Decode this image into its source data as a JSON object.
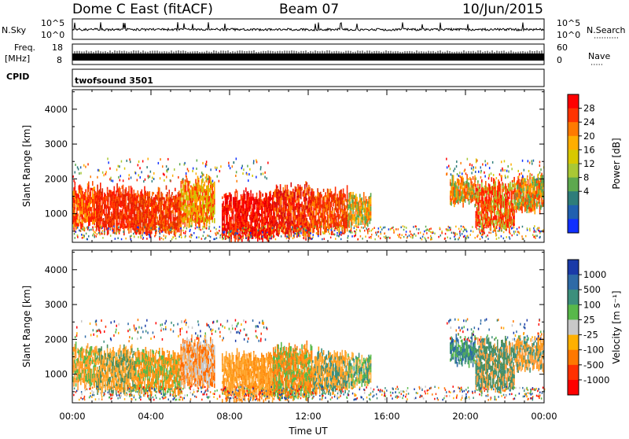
{
  "header": {
    "station": "Dome C East (fitACF)",
    "beam": "Beam 07",
    "date": "10/Jun/2015"
  },
  "params": {
    "nsky_label": "N.Sky",
    "nsky_ticks": [
      "10^5",
      "10^0"
    ],
    "nsearch_label": "N.Search",
    "nsearch_ticks": [
      "10^5",
      "10^0"
    ],
    "freq_label_1": "Freq.",
    "freq_label_2": "[MHz]",
    "freq_ticks": [
      "18",
      "8"
    ],
    "nave_label": "Nave",
    "nave_ticks": [
      "60",
      "0"
    ],
    "cpid_label": "CPID",
    "cpid_value": "twofsound 3501"
  },
  "chart_data": [
    {
      "type": "heatmap",
      "name": "power",
      "ylabel": "Slant Range [km]",
      "xlabel": "",
      "y_ticks": [
        "4000",
        "3000",
        "2000",
        "1000"
      ],
      "ylim": [
        180,
        4560
      ],
      "x_ticks": [
        "00:00",
        "04:00",
        "08:00",
        "12:00",
        "16:00",
        "20:00",
        "00:00"
      ],
      "xlim_hours": [
        0,
        24
      ],
      "colorbar": {
        "label": "Power [dB]",
        "ticks": [
          "28",
          "24",
          "20",
          "16",
          "12",
          "8",
          "4"
        ],
        "colors": [
          "#ff0000",
          "#ff3300",
          "#ff7a00",
          "#ffae00",
          "#d8c800",
          "#a9c835",
          "#5da84e",
          "#2e7d7a",
          "#2060b0",
          "#1030ff"
        ]
      },
      "segments": [
        {
          "t": [
            0.0,
            1.2
          ],
          "r": [
            650,
            1700
          ],
          "colors": [
            "#ff1a00",
            "#ff5000",
            "#ffa000"
          ]
        },
        {
          "t": [
            1.2,
            3.2
          ],
          "r": [
            500,
            1650
          ],
          "colors": [
            "#ff1a00",
            "#ff5000",
            "#e02200"
          ]
        },
        {
          "t": [
            3.2,
            5.5
          ],
          "r": [
            450,
            1550
          ],
          "colors": [
            "#ff1a00",
            "#e03000",
            "#ff6a00"
          ]
        },
        {
          "t": [
            5.5,
            7.2
          ],
          "r": [
            700,
            1900
          ],
          "colors": [
            "#ff3a00",
            "#ffa000",
            "#c8c000"
          ]
        },
        {
          "t": [
            7.6,
            10.2
          ],
          "r": [
            300,
            1500
          ],
          "colors": [
            "#ff0000",
            "#e00000",
            "#ff4000"
          ]
        },
        {
          "t": [
            10.2,
            12.2
          ],
          "r": [
            350,
            1700
          ],
          "colors": [
            "#ff1a00",
            "#d81010",
            "#ff7000"
          ]
        },
        {
          "t": [
            12.2,
            14.0
          ],
          "r": [
            500,
            1550
          ],
          "colors": [
            "#ff2a00",
            "#e03000",
            "#ff8000"
          ]
        },
        {
          "t": [
            14.0,
            15.2
          ],
          "r": [
            700,
            1450
          ],
          "colors": [
            "#ff6a00",
            "#5da84e",
            "#ffb000"
          ]
        },
        {
          "t": [
            19.2,
            20.5
          ],
          "r": [
            1300,
            1950
          ],
          "colors": [
            "#5da84e",
            "#ffa000",
            "#ff5000"
          ]
        },
        {
          "t": [
            20.5,
            22.5
          ],
          "r": [
            550,
            1850
          ],
          "colors": [
            "#ff1a00",
            "#ff6000",
            "#a9c835"
          ]
        },
        {
          "t": [
            22.5,
            24.0
          ],
          "r": [
            1100,
            1950
          ],
          "colors": [
            "#ff4000",
            "#ffa000",
            "#5da84e"
          ]
        }
      ]
    },
    {
      "type": "heatmap",
      "name": "velocity",
      "ylabel": "Slant Range [km]",
      "xlabel": "Time UT",
      "y_ticks": [
        "4000",
        "3000",
        "2000",
        "1000"
      ],
      "ylim": [
        180,
        4560
      ],
      "x_ticks": [
        "00:00",
        "04:00",
        "08:00",
        "12:00",
        "16:00",
        "20:00",
        "00:00"
      ],
      "xlim_hours": [
        0,
        24
      ],
      "colorbar": {
        "label": "Velocity [m s⁻¹]",
        "ticks": [
          "1000",
          "500",
          "100",
          "25",
          "-25",
          "-100",
          "-500",
          "-1000"
        ],
        "colors": [
          "#1a3aa8",
          "#2e6aa6",
          "#3c8f7c",
          "#58b84a",
          "#c8c8c8",
          "#ffb000",
          "#ff7800",
          "#ff3000",
          "#ff0000"
        ]
      },
      "segments": [
        {
          "t": [
            0.0,
            1.2
          ],
          "r": [
            650,
            1700
          ],
          "colors": [
            "#ff9a1a",
            "#ffa040",
            "#58b84a"
          ]
        },
        {
          "t": [
            1.2,
            3.2
          ],
          "r": [
            500,
            1650
          ],
          "colors": [
            "#ff9a1a",
            "#ffb240",
            "#4f8f5a"
          ]
        },
        {
          "t": [
            3.2,
            5.5
          ],
          "r": [
            450,
            1550
          ],
          "colors": [
            "#ff9a1a",
            "#ff8a10",
            "#58b84a"
          ]
        },
        {
          "t": [
            5.5,
            7.2
          ],
          "r": [
            700,
            1900
          ],
          "colors": [
            "#ff6a00",
            "#ffa040",
            "#c8c8c8"
          ]
        },
        {
          "t": [
            7.6,
            10.2
          ],
          "r": [
            300,
            1500
          ],
          "colors": [
            "#ff9a1a",
            "#ffb040",
            "#ff8a10"
          ]
        },
        {
          "t": [
            10.2,
            12.2
          ],
          "r": [
            350,
            1700
          ],
          "colors": [
            "#ff9a1a",
            "#ff7a10",
            "#58b84a"
          ]
        },
        {
          "t": [
            12.2,
            14.0
          ],
          "r": [
            500,
            1550
          ],
          "colors": [
            "#ff9a1a",
            "#ffb040",
            "#3c8f7c"
          ]
        },
        {
          "t": [
            14.0,
            15.2
          ],
          "r": [
            700,
            1450
          ],
          "colors": [
            "#58b84a",
            "#3c8f7c",
            "#ffb040"
          ]
        },
        {
          "t": [
            19.2,
            20.5
          ],
          "r": [
            1300,
            1950
          ],
          "colors": [
            "#3c8f7c",
            "#2e6aa6",
            "#58b84a"
          ]
        },
        {
          "t": [
            20.5,
            22.5
          ],
          "r": [
            550,
            1850
          ],
          "colors": [
            "#3c8f7c",
            "#4f8f5a",
            "#ffa040"
          ]
        },
        {
          "t": [
            22.5,
            24.0
          ],
          "r": [
            1100,
            1950
          ],
          "colors": [
            "#ffa040",
            "#3c8f7c",
            "#ff9a1a"
          ]
        }
      ]
    }
  ]
}
